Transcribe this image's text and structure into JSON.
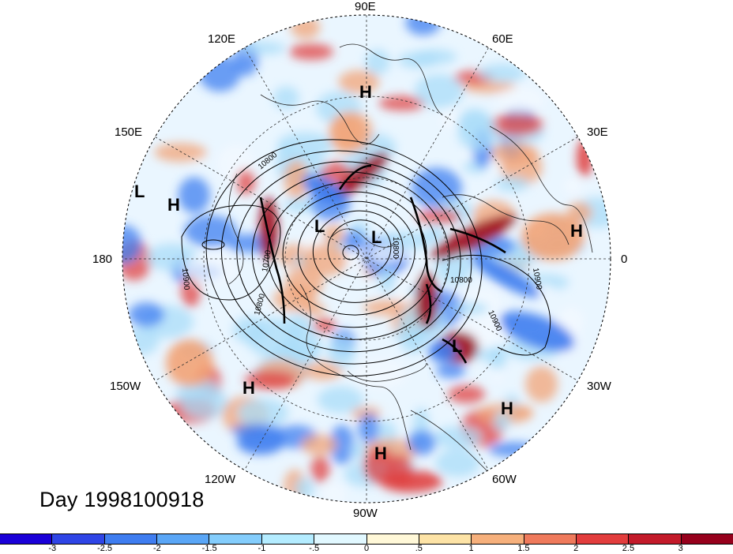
{
  "title": "Day 1998100918",
  "longitude_labels": [
    {
      "id": "90e",
      "text": "90E"
    },
    {
      "id": "60e",
      "text": "60E"
    },
    {
      "id": "30e",
      "text": "30E"
    },
    {
      "id": "0",
      "text": "0"
    },
    {
      "id": "30w",
      "text": "30W"
    },
    {
      "id": "60w",
      "text": "60W"
    },
    {
      "id": "90w",
      "text": "90W"
    },
    {
      "id": "120w",
      "text": "120W"
    },
    {
      "id": "150w",
      "text": "150W"
    },
    {
      "id": "180",
      "text": "180"
    },
    {
      "id": "150e",
      "text": "150E"
    },
    {
      "id": "120e",
      "text": "120E"
    }
  ],
  "pressure_centers": [
    {
      "label": "H",
      "type": "high"
    },
    {
      "label": "L",
      "type": "low"
    },
    {
      "label": "H",
      "type": "high"
    },
    {
      "label": "L",
      "type": "low"
    },
    {
      "label": "L",
      "type": "low"
    },
    {
      "label": "H",
      "type": "high"
    },
    {
      "label": "L",
      "type": "low"
    },
    {
      "label": "H",
      "type": "high"
    },
    {
      "label": "H",
      "type": "high"
    },
    {
      "label": "H",
      "type": "high"
    }
  ],
  "contour_labels": [
    "10800",
    "10700",
    "10800",
    "10900",
    "10800",
    "10900",
    "10900",
    "10800"
  ],
  "colorbar": {
    "colors": [
      "#1a00d8",
      "#2f45e6",
      "#3f7df0",
      "#5aa6f6",
      "#84cdfc",
      "#b4ecff",
      "#e1f8ff",
      "#fff8d8",
      "#fde3a6",
      "#f6b07c",
      "#ef7a5c",
      "#e23d3d",
      "#c31a2a",
      "#96001c"
    ],
    "tick_labels": [
      "-3",
      "-2.5",
      "-2",
      "-1.5",
      "-1",
      "-.5",
      "0",
      ".5",
      "1",
      "1.5",
      "2",
      "2.5",
      "3"
    ]
  },
  "map_colors": {
    "blue": "#3f7df0",
    "light_blue": "#a9dcf8",
    "pale": "#f3f8ff",
    "orange": "#f2a377",
    "red": "#e04040",
    "dark_red": "#9c0d1e"
  }
}
